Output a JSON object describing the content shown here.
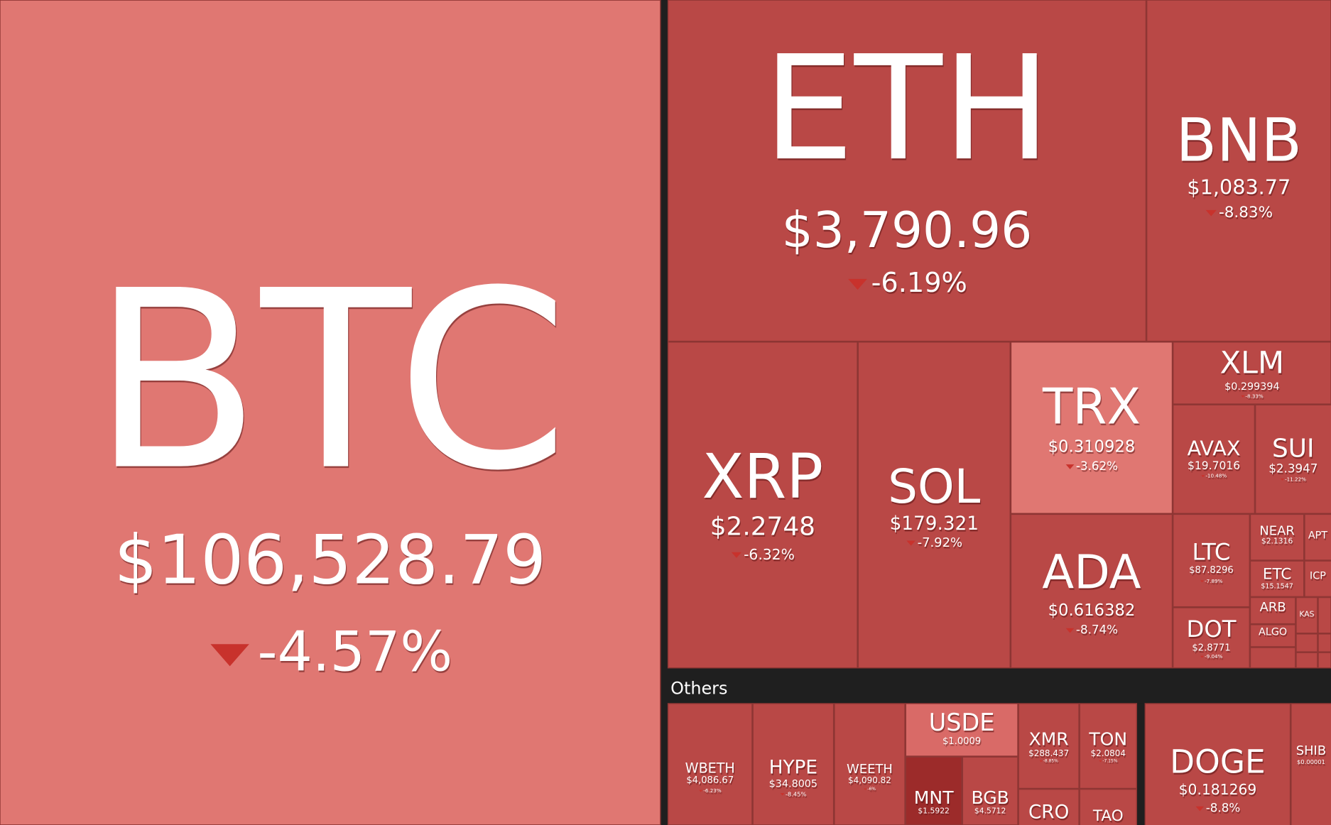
{
  "others_label": "Others",
  "tiles": [
    {
      "symbol": "BTC",
      "price": "$106,528.79",
      "change": "-4.57%"
    },
    {
      "symbol": "ETH",
      "price": "$3,790.96",
      "change": "-6.19%"
    },
    {
      "symbol": "BNB",
      "price": "$1,083.77",
      "change": "-8.83%"
    },
    {
      "symbol": "XRP",
      "price": "$2.2748",
      "change": "-6.32%"
    },
    {
      "symbol": "SOL",
      "price": "$179.321",
      "change": "-7.92%"
    },
    {
      "symbol": "TRX",
      "price": "$0.310928",
      "change": "-3.62%"
    },
    {
      "symbol": "ADA",
      "price": "$0.616382",
      "change": "-8.74%"
    },
    {
      "symbol": "XLM",
      "price": "$0.299394",
      "change": "-8.33%"
    },
    {
      "symbol": "AVAX",
      "price": "$19.7016",
      "change": "-10.48%"
    },
    {
      "symbol": "SUI",
      "price": "$2.3947",
      "change": "-11.22%"
    },
    {
      "symbol": "LTC",
      "price": "$87.8296",
      "change": "-7.89%"
    },
    {
      "symbol": "DOT",
      "price": "$2.8771",
      "change": "-9.04%"
    },
    {
      "symbol": "NEAR",
      "price": "$2.1316"
    },
    {
      "symbol": "APT"
    },
    {
      "symbol": "ETC",
      "price": "$15.1547"
    },
    {
      "symbol": "ICP"
    },
    {
      "symbol": "ARB"
    },
    {
      "symbol": "KAS"
    },
    {
      "symbol": "ALGO"
    },
    {
      "symbol": "WBETH",
      "price": "$4,086.67",
      "change": "-6.23%"
    },
    {
      "symbol": "HYPE",
      "price": "$34.8005",
      "change": "-8.45%"
    },
    {
      "symbol": "WEETH",
      "price": "$4,090.82",
      "change": "-6%"
    },
    {
      "symbol": "USDE",
      "price": "$1.0009"
    },
    {
      "symbol": "MNT",
      "price": "$1.5922"
    },
    {
      "symbol": "BGB",
      "price": "$4.5712"
    },
    {
      "symbol": "XMR",
      "price": "$288.437",
      "change": "-8.85%"
    },
    {
      "symbol": "TON",
      "price": "$2.0804",
      "change": "-7.15%"
    },
    {
      "symbol": "CRO"
    },
    {
      "symbol": "TAO"
    },
    {
      "symbol": "DOGE",
      "price": "$0.181269",
      "change": "-8.8%"
    },
    {
      "symbol": "SHIB",
      "price": "$0.00001"
    }
  ]
}
